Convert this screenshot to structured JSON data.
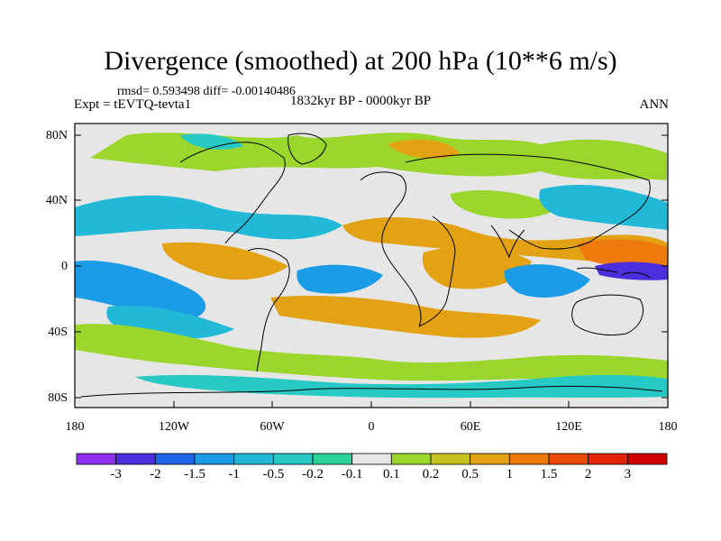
{
  "title": "Divergence (smoothed) at 200 hPa (10**6 m/s)",
  "stats": "rmsd= 0.593498 diff= -0.00140486",
  "experiment": "Expt = tEVTQ-tevta1",
  "period": "1832kyr BP - 0000kyr BP",
  "season": "ANN",
  "lat_labels": [
    "80N",
    "40N",
    "0",
    "40S",
    "80S"
  ],
  "lon_labels": [
    "180",
    "120W",
    "60W",
    "0",
    "60E",
    "120E",
    "180"
  ],
  "colorbar": {
    "labels": [
      "-3",
      "-2",
      "-1.5",
      "-1",
      "-0.5",
      "-0.2",
      "-0.1",
      "0.1",
      "0.2",
      "0.5",
      "1",
      "1.5",
      "2",
      "3"
    ],
    "colors": [
      "#8f2ff0",
      "#4b2fdc",
      "#1f64e6",
      "#1a9ce6",
      "#22b9d8",
      "#27c9c4",
      "#2bd39a",
      "#e6e6e6",
      "#9ad62c",
      "#c4c21f",
      "#e2a214",
      "#ee7a0c",
      "#ec4a08",
      "#e3220a",
      "#d00000"
    ]
  },
  "colors": {
    "background": "#e6e6e6",
    "coast": "#000000"
  }
}
